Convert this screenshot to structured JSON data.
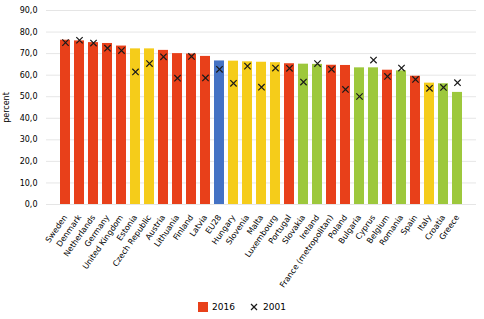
{
  "chart_data": {
    "type": "bar",
    "categories": [
      "Sweden",
      "Denmark",
      "Netherlands",
      "Germany",
      "United Kingdom",
      "Estonia",
      "Czech Republic",
      "Austria",
      "Lithuania",
      "Finland",
      "Latvia",
      "EU28",
      "Hungary",
      "Slovenia",
      "Malta",
      "Luxembourg",
      "Portugal",
      "Slovakia",
      "Ireland",
      "France (metropolitan)",
      "Poland",
      "Bulgaria",
      "Cyprus",
      "Belgium",
      "Romania",
      "Spain",
      "Italy",
      "Croatia",
      "Greece"
    ],
    "series": [
      {
        "name": "2016",
        "type": "bar",
        "color": "#E8401A",
        "colors": [
          "#E8401A",
          "#E8401A",
          "#E8401A",
          "#E8401A",
          "#E8401A",
          "#F5CC1A",
          "#F5CC1A",
          "#E8401A",
          "#E8401A",
          "#E8401A",
          "#E8401A",
          "#4472C4",
          "#F5CC1A",
          "#F5CC1A",
          "#F5CC1A",
          "#F5CC1A",
          "#E8401A",
          "#9DC83C",
          "#9DC83C",
          "#E8401A",
          "#E8401A",
          "#9DC83C",
          "#9DC83C",
          "#E8401A",
          "#9DC83C",
          "#E8401A",
          "#F5CC1A",
          "#9DC83C",
          "#9DC83C"
        ],
        "values": [
          76.2,
          75.9,
          75.1,
          74.7,
          73.5,
          72.2,
          72.2,
          71.5,
          70.0,
          69.8,
          68.7,
          66.6,
          66.5,
          66.2,
          66.0,
          65.8,
          65.3,
          65.1,
          65.0,
          64.6,
          64.5,
          63.4,
          63.4,
          62.3,
          62.0,
          59.5,
          56.3,
          56.0,
          52.0
        ]
      },
      {
        "name": "2001",
        "type": "scatter",
        "marker": "x",
        "color": "#1a1a1a",
        "values": [
          75.1,
          76.2,
          74.9,
          72.5,
          71.4,
          61.5,
          65.4,
          68.5,
          58.6,
          68.7,
          58.7,
          62.7,
          56.2,
          64.2,
          54.4,
          63.3,
          63.2,
          56.8,
          65.4,
          62.7,
          53.4,
          50.1,
          67.0,
          59.4,
          63.3,
          58.0,
          53.9,
          54.3,
          56.5
        ]
      }
    ],
    "ylabel": "percent",
    "ylim": [
      0,
      90
    ],
    "yticks": [
      {
        "value": 0,
        "label": "0,0"
      },
      {
        "value": 10,
        "label": "10,0"
      },
      {
        "value": 20,
        "label": "20,0"
      },
      {
        "value": 30,
        "label": "30,0"
      },
      {
        "value": 40,
        "label": "40,0"
      },
      {
        "value": 50,
        "label": "50,0"
      },
      {
        "value": 60,
        "label": "60,0"
      },
      {
        "value": 70,
        "label": "70,0"
      },
      {
        "value": 80,
        "label": "80,0"
      },
      {
        "value": 90,
        "label": "90,0"
      }
    ],
    "grid": true,
    "legend": "bottom"
  }
}
